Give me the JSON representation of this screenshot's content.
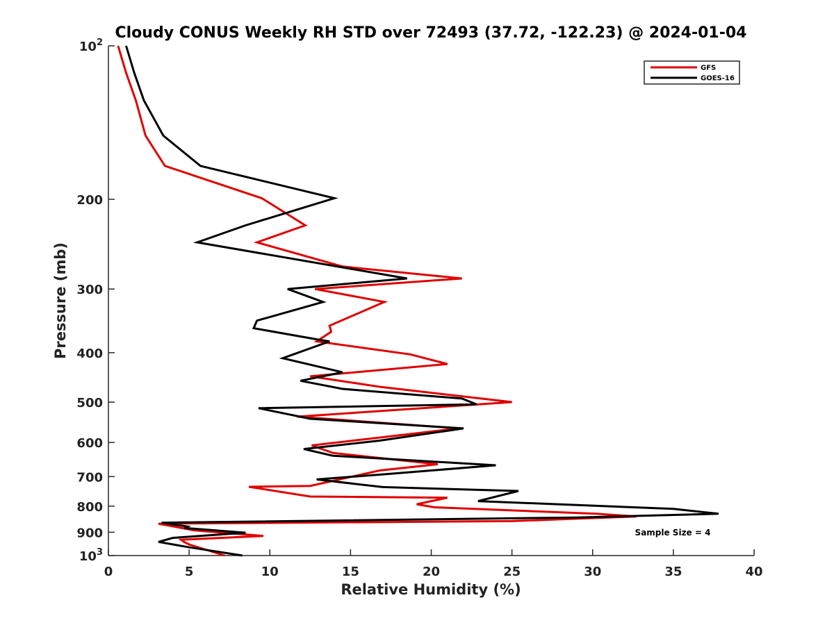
{
  "chart_data": {
    "type": "line",
    "title": "Cloudy CONUS Weekly RH STD over 72493 (37.72, -122.23) @ 2024-01-04",
    "xlabel": "Relative Humidity (%)",
    "ylabel": "Pressure (mb)",
    "xlim": [
      0,
      40
    ],
    "ylim": [
      100,
      1000
    ],
    "y_scale": "log",
    "y_reversed": true,
    "grid": false,
    "legend_position": "top-right",
    "x_ticks": [
      0,
      5,
      10,
      15,
      20,
      25,
      30,
      35,
      40
    ],
    "x_tick_labels": [
      "0",
      "5",
      "10",
      "15",
      "20",
      "25",
      "30",
      "35",
      "40"
    ],
    "y_ticks": [
      {
        "value": 100,
        "base": "10",
        "exp": "2"
      },
      {
        "value": 200,
        "label": "200"
      },
      {
        "value": 300,
        "label": "300"
      },
      {
        "value": 400,
        "label": "400"
      },
      {
        "value": 500,
        "label": "500"
      },
      {
        "value": 600,
        "label": "600"
      },
      {
        "value": 700,
        "label": "700"
      },
      {
        "value": 800,
        "label": "800"
      },
      {
        "value": 900,
        "label": "900"
      },
      {
        "value": 1000,
        "base": "10",
        "exp": "3"
      }
    ],
    "annotation": "Sample Size = 4",
    "series": [
      {
        "name": "GFS",
        "color": "#e00000",
        "points": [
          [
            0.6,
            100
          ],
          [
            1.1,
            113
          ],
          [
            1.7,
            128
          ],
          [
            2.3,
            150
          ],
          [
            3.5,
            172
          ],
          [
            9.5,
            199
          ],
          [
            12.2,
            225
          ],
          [
            9.2,
            243
          ],
          [
            14.5,
            271
          ],
          [
            21.9,
            286
          ],
          [
            12.8,
            300
          ],
          [
            17.1,
            318
          ],
          [
            13.7,
            354
          ],
          [
            13.8,
            364
          ],
          [
            12.9,
            380
          ],
          [
            18.7,
            403
          ],
          [
            21.0,
            421
          ],
          [
            12.5,
            445
          ],
          [
            16.9,
            467
          ],
          [
            25.0,
            500
          ],
          [
            11.7,
            534
          ],
          [
            21.7,
            563
          ],
          [
            12.6,
            608
          ],
          [
            13.9,
            629
          ],
          [
            20.4,
            662
          ],
          [
            16.8,
            681
          ],
          [
            12.5,
            730
          ],
          [
            8.7,
            733
          ],
          [
            12.5,
            766
          ],
          [
            21.0,
            770
          ],
          [
            19.1,
            793
          ],
          [
            20.2,
            804
          ],
          [
            30.2,
            828
          ],
          [
            32.7,
            838
          ],
          [
            25.0,
            856
          ],
          [
            3.1,
            866
          ],
          [
            5.3,
            892
          ],
          [
            6.0,
            896
          ],
          [
            9.6,
            915
          ],
          [
            4.5,
            931
          ],
          [
            4.7,
            941
          ],
          [
            5.0,
            951
          ],
          [
            7.2,
            1000
          ]
        ]
      },
      {
        "name": "GOES-16",
        "color": "#000000",
        "points": [
          [
            1.1,
            100
          ],
          [
            1.6,
            113
          ],
          [
            2.2,
            128
          ],
          [
            3.4,
            150
          ],
          [
            5.7,
            172
          ],
          [
            14.0,
            199
          ],
          [
            8.5,
            225
          ],
          [
            5.5,
            243
          ],
          [
            18.5,
            286
          ],
          [
            11.1,
            300
          ],
          [
            13.3,
            318
          ],
          [
            9.2,
            346
          ],
          [
            9.0,
            358
          ],
          [
            13.2,
            378
          ],
          [
            13.7,
            380
          ],
          [
            10.8,
            410
          ],
          [
            14.5,
            437
          ],
          [
            11.9,
            454
          ],
          [
            14.5,
            471
          ],
          [
            21.9,
            492
          ],
          [
            22.8,
            505
          ],
          [
            9.3,
            514
          ],
          [
            12.5,
            539
          ],
          [
            22.0,
            563
          ],
          [
            16.8,
            595
          ],
          [
            12.1,
            618
          ],
          [
            13.9,
            637
          ],
          [
            24.0,
            665
          ],
          [
            17.0,
            693
          ],
          [
            12.9,
            709
          ],
          [
            17.0,
            734
          ],
          [
            25.4,
            747
          ],
          [
            22.9,
            782
          ],
          [
            35.0,
            810
          ],
          [
            37.8,
            828
          ],
          [
            29.0,
            842
          ],
          [
            3.3,
            862
          ],
          [
            4.9,
            877
          ],
          [
            4.7,
            883
          ],
          [
            8.5,
            902
          ],
          [
            4.0,
            923
          ],
          [
            3.1,
            940
          ],
          [
            4.9,
            962
          ],
          [
            8.3,
            1000
          ]
        ]
      }
    ]
  }
}
